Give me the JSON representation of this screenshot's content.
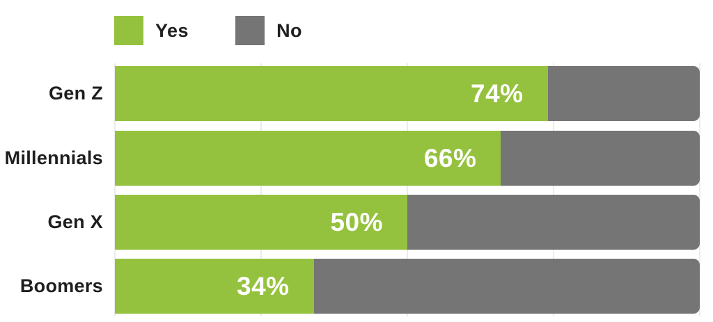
{
  "chart_data": {
    "type": "bar",
    "orientation": "horizontal",
    "stacked": true,
    "title": "",
    "xlabel": "",
    "ylabel": "",
    "categories": [
      "Gen Z",
      "Millennials",
      "Gen X",
      "Boomers"
    ],
    "series": [
      {
        "name": "Yes",
        "values": [
          74,
          66,
          50,
          34
        ],
        "color": "#95c23e"
      },
      {
        "name": "No",
        "values": [
          26,
          34,
          50,
          66
        ],
        "color": "#757575"
      }
    ],
    "value_labels": [
      "74%",
      "66%",
      "50%",
      "34%"
    ],
    "xlim": [
      0,
      100
    ],
    "grid": true,
    "gridline_interval": 25,
    "legend_position": "top-left"
  },
  "legend": {
    "items": [
      {
        "label": "Yes",
        "color": "#95c23e"
      },
      {
        "label": "No",
        "color": "#757575"
      }
    ]
  },
  "rows": [
    {
      "category": "Gen Z",
      "yes": 74,
      "no": 26,
      "value_label": "74%"
    },
    {
      "category": "Millennials",
      "yes": 66,
      "no": 34,
      "value_label": "66%"
    },
    {
      "category": "Gen X",
      "yes": 50,
      "no": 50,
      "value_label": "50%"
    },
    {
      "category": "Boomers",
      "yes": 34,
      "no": 66,
      "value_label": "34%"
    }
  ],
  "colors": {
    "yes": "#95c23e",
    "no": "#757575",
    "grid": "#ebebeb",
    "category_text": "#1e1e1e",
    "value_text": "#ffffff"
  }
}
